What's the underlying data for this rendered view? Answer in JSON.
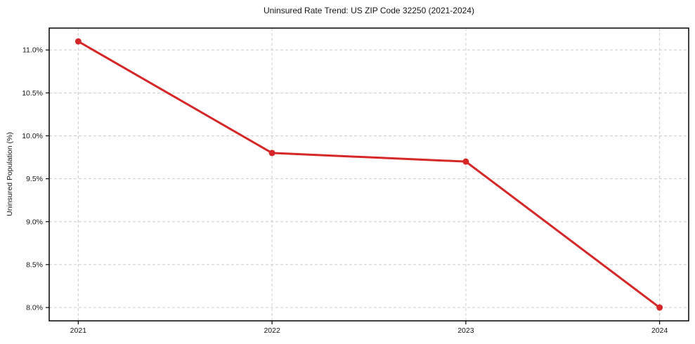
{
  "chart_data": {
    "type": "line",
    "title": "Uninsured Rate Trend: US ZIP Code 32250 (2021-2024)",
    "xlabel": "",
    "ylabel": "Uninsured Population (%)",
    "categories": [
      "2021",
      "2022",
      "2023",
      "2024"
    ],
    "x": [
      2021,
      2022,
      2023,
      2024
    ],
    "values": [
      11.1,
      9.8,
      9.7,
      8.0
    ],
    "yticks": [
      8.0,
      8.5,
      9.0,
      9.5,
      10.0,
      10.5,
      11.0
    ],
    "ytick_labels": [
      "8.0%",
      "8.5%",
      "9.0%",
      "9.5%",
      "10.0%",
      "10.5%",
      "11.0%"
    ],
    "xlim": [
      2020.85,
      2024.15
    ],
    "ylim": [
      7.845,
      11.255
    ],
    "grid": true,
    "grid_style": "dashed",
    "legend": "none",
    "marker": "circle",
    "colors": {
      "line": "#d62728",
      "grid": "#cccccc",
      "axis": "#000000",
      "text": "#151515",
      "background": "#ffffff"
    }
  }
}
